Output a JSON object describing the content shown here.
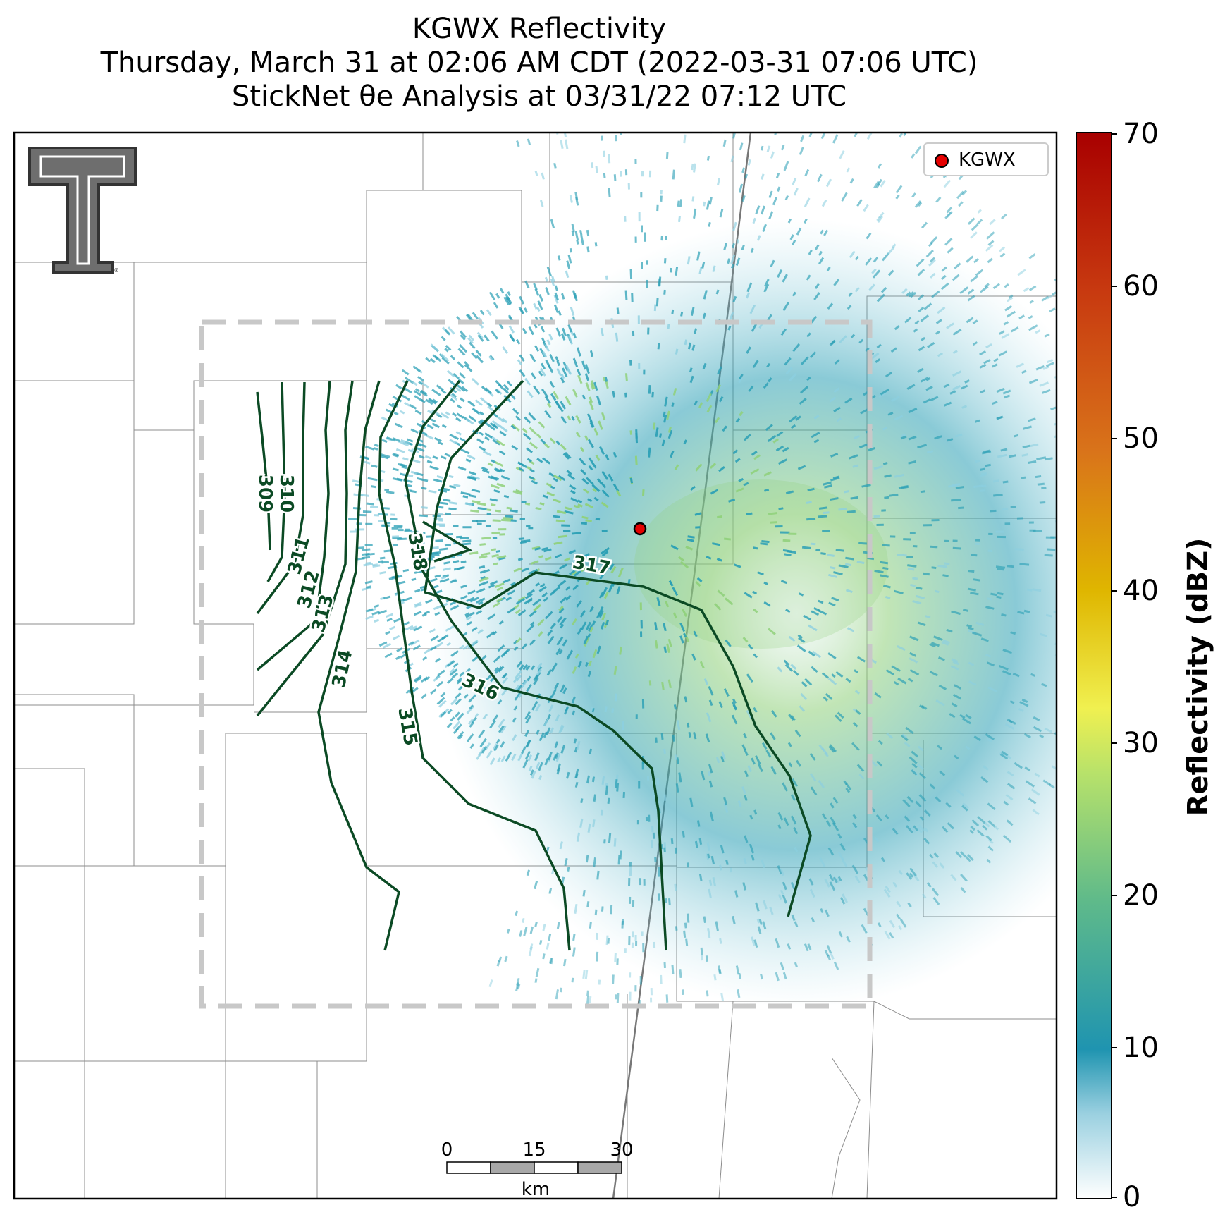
{
  "title": {
    "line1": "KGWX Reflectivity",
    "line2": "Thursday, March 31 at 02:06 AM CDT (2022-03-31 07:06 UTC)",
    "line3": "StickNet θe Analysis at 03/31/22 07:12 UTC"
  },
  "legend": {
    "label": "KGWX",
    "marker_color": "#e60000"
  },
  "colorbar": {
    "label": "Reflectivity (dBZ)",
    "ticks": [
      "70",
      "60",
      "50",
      "40",
      "30",
      "20",
      "10",
      "0"
    ],
    "colors": [
      "#ffffff",
      "#1f94b0",
      "#5fba8a",
      "#b8e26a",
      "#f0ea40",
      "#dfb600",
      "#d9741a",
      "#c83a10",
      "#a80000"
    ]
  },
  "scalebar": {
    "labels": [
      "0",
      "15",
      "30"
    ],
    "unit": "km"
  },
  "contours": {
    "color": "#0b4a24",
    "labels": [
      "309",
      "310",
      "311",
      "312",
      "313",
      "314",
      "315",
      "316",
      "317",
      "318"
    ]
  },
  "colors": {
    "analysis_box": "#c8c8c8",
    "county_lines": "#8c8c8c",
    "radar_echo_primary": "#2a9fb5",
    "radar_echo_light": "#8ccfe0",
    "radar_echo_green": "#8fd07a"
  },
  "logo": {
    "name": "texas-tech-double-t-logo"
  },
  "radar_site": {
    "name": "KGWX"
  }
}
